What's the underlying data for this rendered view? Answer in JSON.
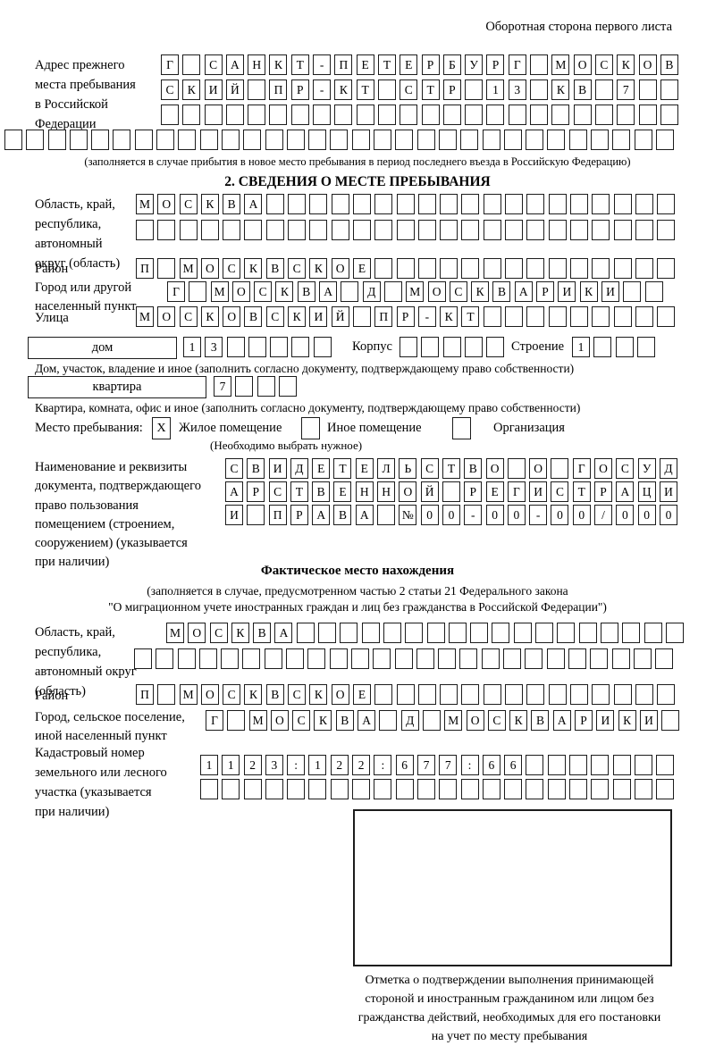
{
  "header": {
    "note": "Оборотная сторона первого листа"
  },
  "prev_address": {
    "label": "Адрес прежнего\nместа пребывания\nв Российской\nФедерации",
    "row1": {
      "text": "Г САНКТ-ПЕТЕРБУРГ МОСКОВ",
      "count": 24
    },
    "row2": {
      "text": "СКИЙ ПР-КТ СТР 13 КВ 7",
      "count": 24
    },
    "row3": {
      "text": "",
      "count": 24
    },
    "row4": {
      "text": "",
      "count": 31
    },
    "caption": "(заполняется в случае прибытия в новое место пребывания в период последнего въезда в Российскую Федерацию)"
  },
  "section2": {
    "title": "2. СВЕДЕНИЯ О МЕСТЕ ПРЕБЫВАНИЯ",
    "region": {
      "label": "Область, край,\nреспублика,\nавтономный\nокруг (область)",
      "row1": {
        "text": "МОСКВА",
        "count": 25
      },
      "row2": {
        "text": "",
        "count": 25
      }
    },
    "district": {
      "label": "Район",
      "row": {
        "text": "П МОСКВСКОЕ",
        "count": 25
      }
    },
    "city": {
      "label": "Город или другой\nнаселенный пункт",
      "row": {
        "text": "Г МОСКВА Д МОСКВАРИКИ",
        "count": 23
      }
    },
    "street": {
      "label": "Улица",
      "row": {
        "text": "МОСКОВСКИЙ ПР-КТ",
        "count": 25
      }
    },
    "house": {
      "box_label": "дом",
      "cells": {
        "text": "13",
        "count": 7
      },
      "korpus_label": "Корпус",
      "korpus_cells": {
        "text": "",
        "count": 5
      },
      "stroenie_label": "Строение",
      "stroenie_cells": {
        "text": "1",
        "count": 4
      },
      "caption": "Дом, участок, владение и иное (заполнить согласно документу, подтверждающему право собственности)"
    },
    "apartment": {
      "box_label": "квартира",
      "cells": {
        "text": "7",
        "count": 4
      },
      "caption": "Квартира, комната, офис и иное (заполнить согласно документу, подтверждающему право собственности)"
    },
    "stay_type": {
      "label": "Место пребывания:",
      "options": [
        {
          "label": "Жилое помещение",
          "mark": "X"
        },
        {
          "label": "Иное помещение",
          "mark": ""
        },
        {
          "label": "Организация",
          "mark": ""
        }
      ],
      "caption": "(Необходимо выбрать нужное)"
    },
    "document": {
      "label": "Наименование и реквизиты\nдокумента, подтверждающего\nправо пользования\nпомещением (строением,\nсооружением) (указывается\nпри наличии)",
      "row1": {
        "text": "СВИДЕТЕЛЬСТВО О ГОСУД",
        "count": 21
      },
      "row2": {
        "text": "АРСТВЕННОЙ РЕГИСТРАЦИ",
        "count": 21
      },
      "row3": {
        "text": "И ПРАВА №00-00-00/000",
        "count": 21
      }
    }
  },
  "actual_location": {
    "title": "Фактическое место нахождения",
    "caption_line1": "(заполняется в случае, предусмотренном частью 2 статьи 21 Федерального закона",
    "caption_line2": "\"О миграционном учете иностранных граждан и лиц без гражданства в Российской Федерации\")",
    "region": {
      "label": "Область, край,\nреспублика,\nавтономный округ\n(область)",
      "row1": {
        "text": "МОСКВА",
        "count": 24
      },
      "row2": {
        "text": "",
        "count": 25
      }
    },
    "district": {
      "label": "Район",
      "row": {
        "text": "П МОСКВСКОЕ",
        "count": 25
      }
    },
    "city": {
      "label": "Город, сельское поселение,\nиной населенный пункт",
      "row": {
        "text": "Г МОСКВА Д МОСКВАРИКИ",
        "count": 22
      }
    },
    "cadastral": {
      "label": "Кадастровый номер\nземельного или лесного\nучастка (указывается\nпри наличии)",
      "row1": {
        "text": "1123:122:677:66",
        "count": 22
      },
      "row2": {
        "text": "",
        "count": 22
      }
    },
    "stamp_caption": "Отметка о подтверждении выполнения принимающей\nстороной и иностранным гражданином или лицом без\nгражданства действий, необходимых для его постановки\nна учет по месту пребывания"
  }
}
